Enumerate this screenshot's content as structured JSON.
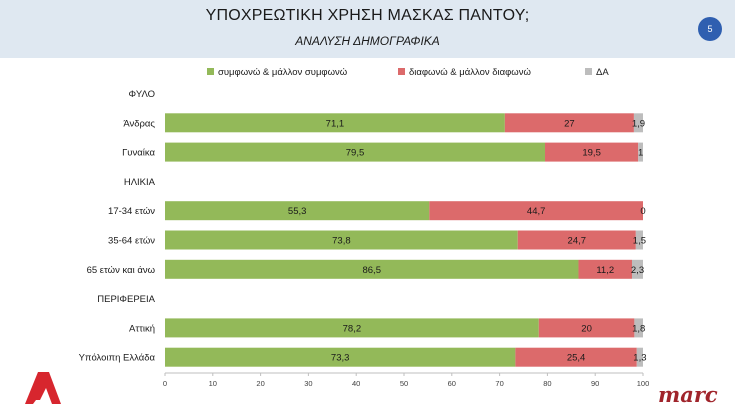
{
  "header": {
    "title": "ΥΠΟΧΡΕΩΤΙΚΗ ΧΡΗΣΗ ΜΑΣΚΑΣ ΠΑΝΤΟΥ;",
    "subtitle": "ΑΝΑΛΥΣΗ ΔΗΜΟΓΡΑΦΙΚΑ",
    "page_number": "5"
  },
  "logos": {
    "alpha": "Α",
    "marc": "marc"
  },
  "chart_data": {
    "type": "bar",
    "orientation": "horizontal",
    "stacked": true,
    "legend_position": "top",
    "xlim": [
      0,
      100
    ],
    "x_ticks": [
      0,
      10,
      20,
      30,
      40,
      50,
      60,
      70,
      80,
      90,
      100
    ],
    "grid": false,
    "colors": [
      "#93b959",
      "#dc6a6b",
      "#bdbdbd"
    ],
    "categories": [
      "ΦΥΛΟ",
      "Άνδρας",
      "Γυναίκα",
      "ΗΛΙΚΙΑ",
      "17-34 ετών",
      "35-64 ετών",
      "65 ετών και άνω",
      "ΠΕΡΙΦΕΡΕΙΑ",
      "Αττική",
      "Υπόλοιπη Ελλάδα"
    ],
    "series": [
      {
        "name": "συμφωνώ & μάλλον συμφωνώ",
        "values": [
          null,
          71.1,
          79.5,
          null,
          55.3,
          73.8,
          86.5,
          null,
          78.2,
          73.3
        ],
        "labels": [
          "",
          "71,1",
          "79,5",
          "",
          "55,3",
          "73,8",
          "86,5",
          "",
          "78,2",
          "73,3"
        ]
      },
      {
        "name": "διαφωνώ & μάλλον διαφωνώ",
        "values": [
          null,
          27,
          19.5,
          null,
          44.7,
          24.7,
          11.2,
          null,
          20,
          25.4
        ],
        "labels": [
          "",
          "27",
          "19,5",
          "",
          "44,7",
          "24,7",
          "11,2",
          "",
          "20",
          "25,4"
        ]
      },
      {
        "name": "ΔΑ",
        "values": [
          null,
          1.9,
          1,
          null,
          0,
          1.5,
          2.3,
          null,
          1.8,
          1.3
        ],
        "labels": [
          "",
          "1,9",
          "1",
          "",
          "0",
          "1,5",
          "2,3",
          "",
          "1,8",
          "1,3"
        ]
      }
    ]
  }
}
